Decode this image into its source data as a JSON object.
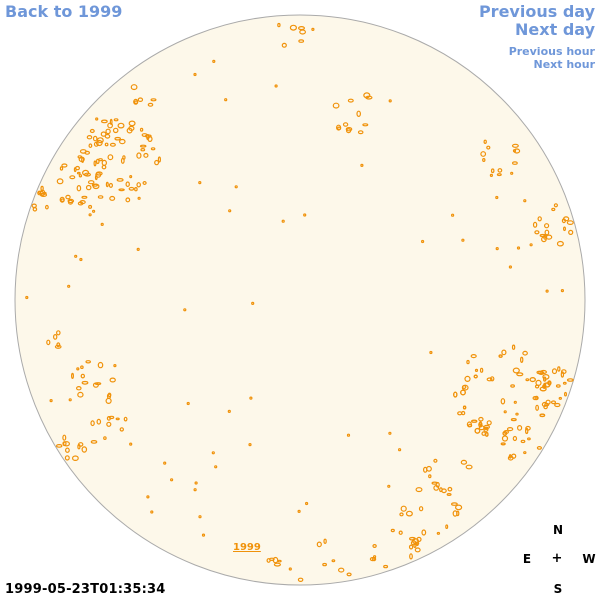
{
  "nav": {
    "back": "Back to 1999",
    "previous_day": "Previous day",
    "next_day": "Next day",
    "previous_hour": "Previous hour",
    "next_hour": "Next hour"
  },
  "year_link": "1999",
  "timestamp": "1999-05-23T01:35:34",
  "compass": {
    "north": "N",
    "east": "E",
    "center": "+",
    "west": "W",
    "south": "S"
  },
  "colors": {
    "link": "#6f97d9",
    "disk_fill": "#fdf8ea",
    "disk_border": "#aaaaaa",
    "contour": "#f0920a"
  }
}
